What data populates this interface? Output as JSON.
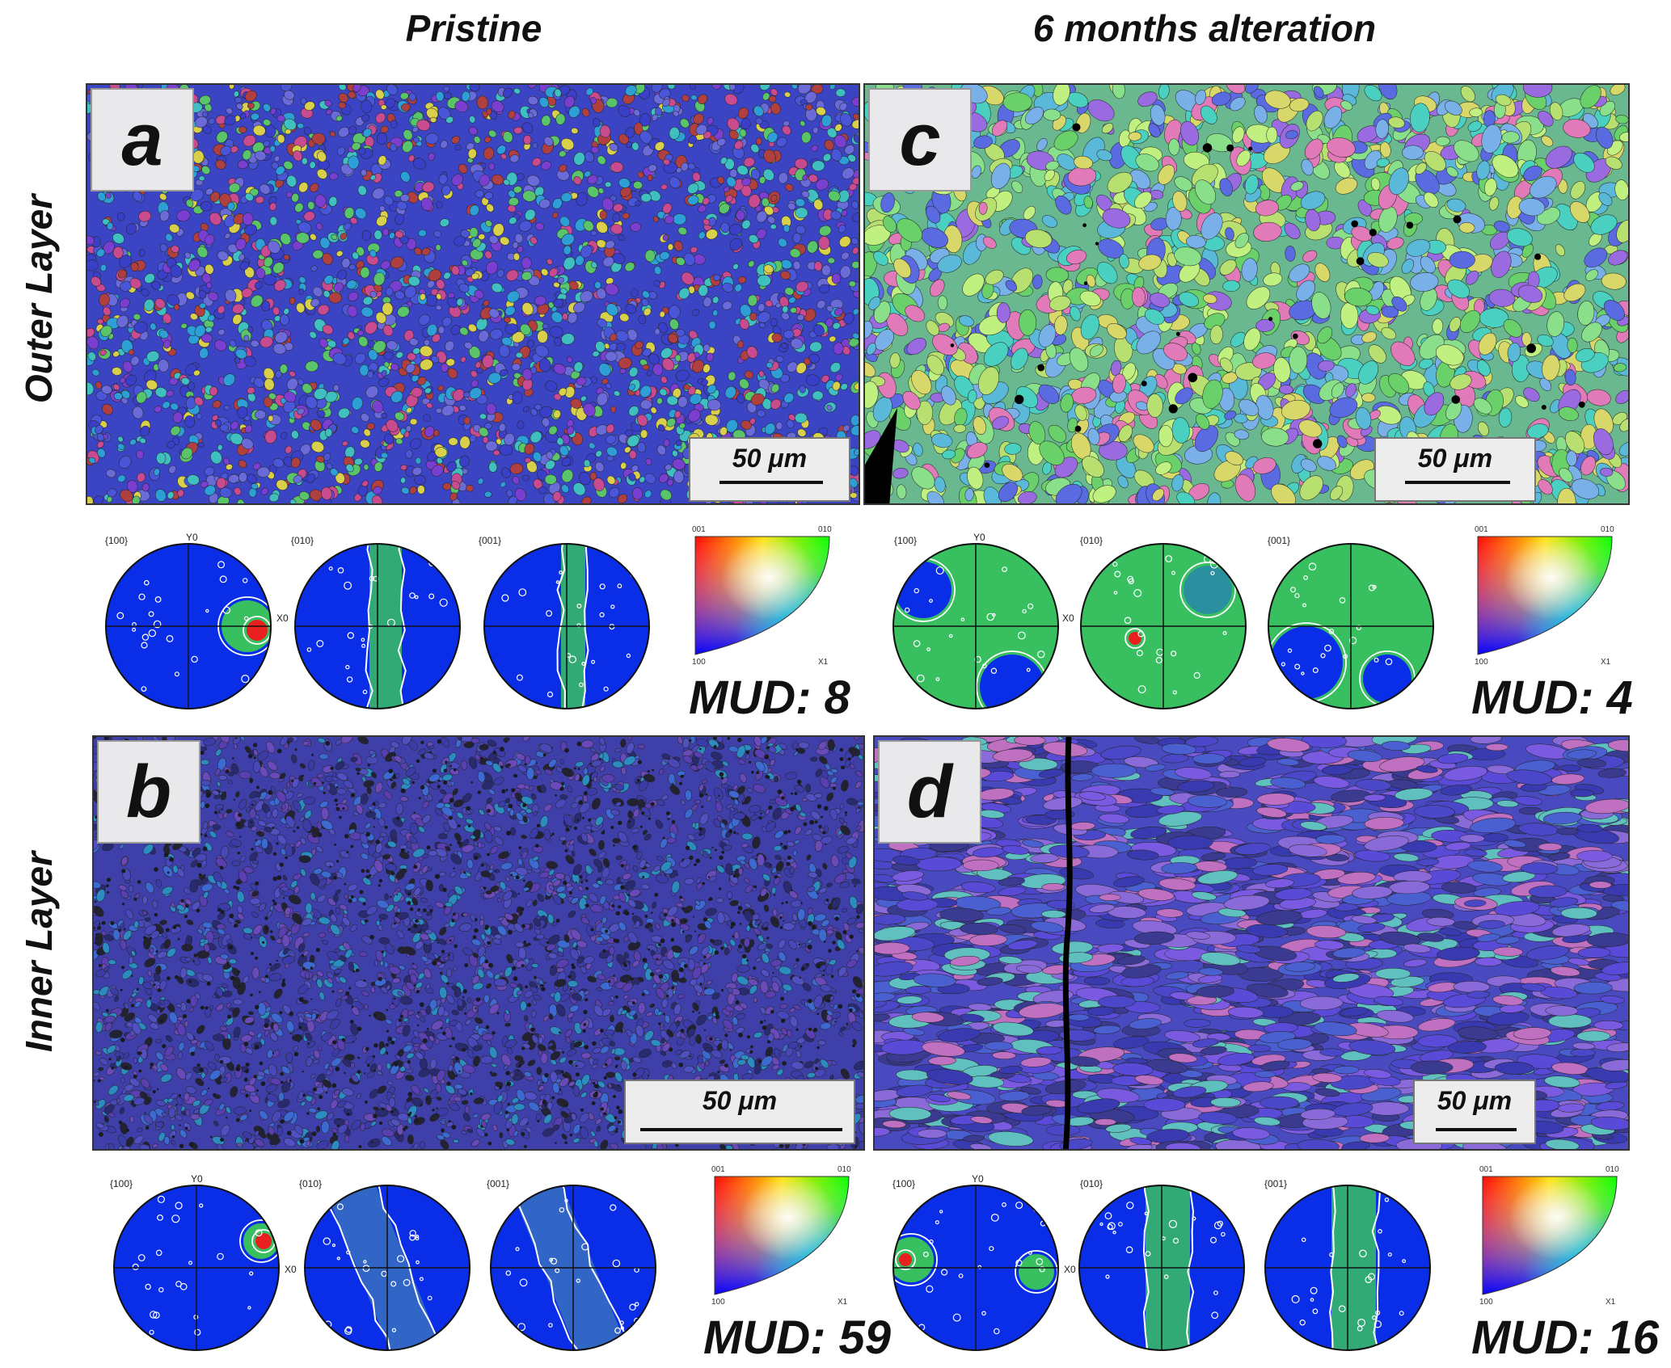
{
  "columns": {
    "pristine": "Pristine",
    "altered": "6 months alteration"
  },
  "rows": {
    "outer": "Outer Layer",
    "inner": "Inner Layer"
  },
  "panels": {
    "a": {
      "label": "a",
      "scale": "50 μm",
      "palette": [
        "#3a3fc8",
        "#4a56d8",
        "#2d9fd6",
        "#5ac46a",
        "#c84a8f",
        "#7a3fd0",
        "#3fbfbf",
        "#d8d04a",
        "#b04040",
        "#6a6ad8"
      ]
    },
    "b": {
      "label": "b",
      "scale": "50 μm",
      "palette": [
        "#3c3ca8",
        "#4848b8",
        "#5050c0",
        "#2a2a70",
        "#5a3fb0",
        "#3d6ad0",
        "#222233",
        "#6a4ab8",
        "#2c8cc0"
      ]
    },
    "c": {
      "label": "c",
      "scale": "50 μm",
      "palette": [
        "#6ad06a",
        "#5a6ae0",
        "#8ae08a",
        "#4ad0c0",
        "#b8e070",
        "#9a6ae0",
        "#e07ab8",
        "#d8d86a",
        "#7ab0e8",
        "#c0f080",
        "#5ab8d8"
      ]
    },
    "d": {
      "label": "d",
      "scale": "50 μm",
      "palette": [
        "#4a48c8",
        "#5a4ad8",
        "#7a5ae0",
        "#3a3ab0",
        "#8a6ad8",
        "#4a60d0",
        "#c070c0",
        "#60c0c0",
        "#3a3a90"
      ]
    }
  },
  "pole_figures": {
    "labels": [
      "{100}",
      "{010}",
      "{001}"
    ],
    "axis_y": "Y0",
    "axis_x": "X0"
  },
  "ipf_key": {
    "top_left": "001",
    "top_right": "010",
    "bottom_left": "100",
    "bottom_right": "X1"
  },
  "mud": {
    "a": "MUD: 8",
    "c": "MUD: 4",
    "b": "MUD: 59",
    "d": "MUD: 16"
  },
  "colors": {
    "pf_blue": "#0a2ee8",
    "pf_green": "#38c060",
    "pf_hot": "#e82020",
    "contour": "#ffffff"
  }
}
